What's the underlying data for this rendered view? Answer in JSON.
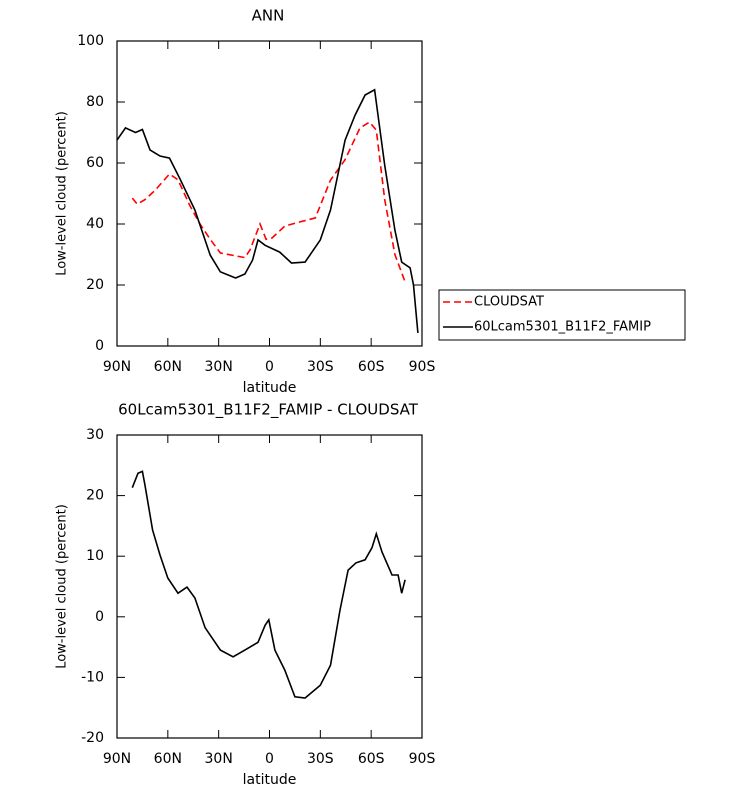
{
  "chart_data": [
    {
      "type": "line",
      "title": "ANN",
      "xlabel": "latitude",
      "ylabel": "Low-level cloud (percent)",
      "xlim": [
        90,
        -90
      ],
      "xticks": [
        {
          "value": 90,
          "label": "90N"
        },
        {
          "value": 60,
          "label": "60N"
        },
        {
          "value": 30,
          "label": "30N"
        },
        0,
        {
          "value": -30,
          "label": "30S"
        },
        {
          "value": -60,
          "label": "60S"
        },
        {
          "value": -90,
          "label": "90S"
        }
      ],
      "ylim": [
        0,
        100
      ],
      "yticks": [
        0,
        20,
        40,
        60,
        80,
        100
      ],
      "legend": "right",
      "series": [
        {
          "name": "CLOUDSAT",
          "color": "#ff0000",
          "dash": "dashed",
          "x": [
            81,
            78,
            73.5,
            67.6,
            59,
            54,
            47,
            41,
            35,
            29,
            14.5,
            11.5,
            5.6,
            2,
            -1.5,
            -9,
            -18,
            -27,
            -36,
            -44.5,
            -53.4,
            -59,
            -63,
            -68,
            -74,
            -80
          ],
          "values": [
            48.5,
            46.5,
            48,
            51,
            56.4,
            54.5,
            46,
            40,
            35,
            30.5,
            29,
            31.5,
            40,
            35,
            35.4,
            39.3,
            40.7,
            42,
            54.4,
            61,
            71.5,
            73.4,
            70.8,
            48,
            30,
            21
          ]
        },
        {
          "name": "60Lcam5301_B11F2_FAMIP",
          "color": "#000000",
          "dash": "solid",
          "x": [
            90,
            85,
            79,
            75,
            70.5,
            64.6,
            59,
            53,
            44,
            35,
            29,
            20,
            14.5,
            10,
            6.8,
            2.6,
            -6,
            -13,
            -21,
            -30,
            -36,
            -44.6,
            -50.5,
            -56.4,
            -62,
            -68,
            -74,
            -78,
            -83,
            -85,
            -87.6
          ],
          "values": [
            67.5,
            71.5,
            70,
            71,
            64.3,
            62.3,
            61.6,
            55,
            44.6,
            29.8,
            24.3,
            22.3,
            23.6,
            28.2,
            34.8,
            33,
            30.8,
            27.2,
            27.5,
            34.8,
            44.6,
            67.5,
            75.7,
            82.3,
            84,
            59.3,
            38,
            27.5,
            25.6,
            20,
            4.3
          ]
        }
      ]
    },
    {
      "type": "line",
      "title": "60Lcam5301_B11F2_FAMIP - CLOUDSAT",
      "xlabel": "latitude",
      "ylabel": "Low-level cloud (percent)",
      "xlim": [
        90,
        -90
      ],
      "xticks": [
        {
          "value": 90,
          "label": "90N"
        },
        {
          "value": 60,
          "label": "60N"
        },
        {
          "value": 30,
          "label": "30N"
        },
        0,
        {
          "value": -30,
          "label": "30S"
        },
        {
          "value": -60,
          "label": "60S"
        },
        {
          "value": -90,
          "label": "90S"
        }
      ],
      "ylim": [
        -20,
        30
      ],
      "yticks": [
        -20,
        -10,
        0,
        10,
        20,
        30
      ],
      "series": [
        {
          "color": "#000000",
          "dash": "solid",
          "x": [
            81,
            77.6,
            75,
            73.5,
            69,
            64.6,
            60,
            54,
            48.7,
            44,
            38,
            29,
            21.5,
            14.5,
            6.8,
            2.6,
            0.4,
            -3.2,
            -9,
            -15,
            -21,
            -30,
            -36,
            -41.6,
            -46.4,
            -51,
            -56.4,
            -60.5,
            -63,
            -66.4,
            -72.3,
            -75.9,
            -78,
            -80
          ],
          "values": [
            21.3,
            23.7,
            24,
            21.7,
            14.3,
            10.2,
            6.4,
            3.9,
            4.9,
            3.1,
            -1.8,
            -5.5,
            -6.6,
            -5.5,
            -4.2,
            -1.4,
            -0.5,
            -5.5,
            -8.8,
            -13.2,
            -13.4,
            -11.3,
            -8,
            1.1,
            7.7,
            8.9,
            9.4,
            11.4,
            13.7,
            10.7,
            6.9,
            6.9,
            3.9,
            6.1
          ]
        }
      ]
    }
  ]
}
